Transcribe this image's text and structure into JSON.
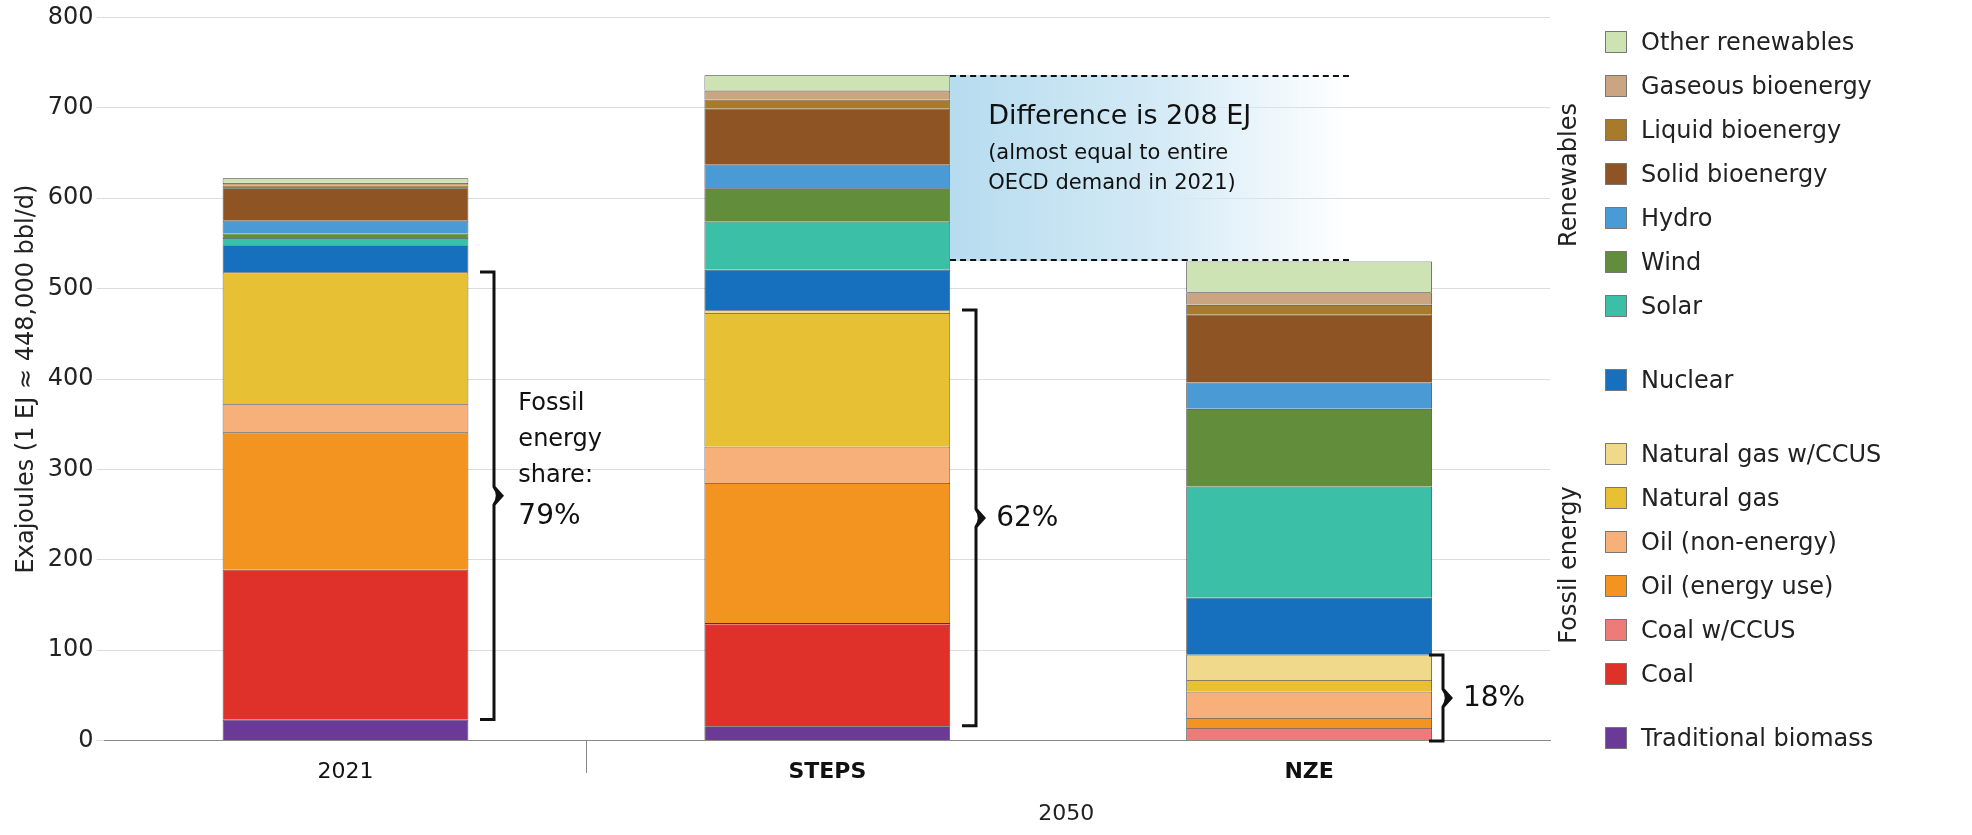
{
  "chart_data": {
    "type": "bar",
    "stacked": true,
    "ylabel": "Exajoules (1 EJ ≈ 448,000 bbl/d)",
    "categories": [
      "2021",
      "STEPS",
      "NZE"
    ],
    "ylim": [
      0,
      800
    ],
    "yticks": [
      0,
      100,
      200,
      300,
      400,
      500,
      600,
      700,
      800
    ],
    "grid": "y",
    "legend": "right",
    "series": [
      {
        "name": "Traditional biomass",
        "color": "#6a3a96",
        "values": [
          23,
          16,
          0
        ]
      },
      {
        "name": "Coal",
        "color": "#e0302a",
        "values": [
          166,
          112,
          0
        ]
      },
      {
        "name": "Coal w/CCUS",
        "color": "#ec7b7a",
        "values": [
          0,
          2,
          14
        ]
      },
      {
        "name": "Oil (energy use)",
        "color": "#f39320",
        "values": [
          152,
          155,
          11
        ]
      },
      {
        "name": "Oil (non-energy)",
        "color": "#f7b07a",
        "values": [
          31,
          40,
          29
        ]
      },
      {
        "name": "Natural gas",
        "color": "#e8c034",
        "values": [
          146,
          148,
          13
        ]
      },
      {
        "name": "Natural gas w/CCUS",
        "color": "#f0d98a",
        "values": [
          0,
          3,
          28
        ]
      },
      {
        "name": "Nuclear",
        "color": "#1670bd",
        "values": [
          30,
          45,
          63
        ]
      },
      {
        "name": "Solar",
        "color": "#3bbfa6",
        "values": [
          8,
          53,
          123
        ]
      },
      {
        "name": "Wind",
        "color": "#628e3c",
        "values": [
          5,
          37,
          86
        ]
      },
      {
        "name": "Hydro",
        "color": "#4a9ad6",
        "values": [
          14,
          26,
          29
        ]
      },
      {
        "name": "Solid bioenergy",
        "color": "#8f5423",
        "values": [
          36,
          62,
          75
        ]
      },
      {
        "name": "Liquid bioenergy",
        "color": "#a87a2c",
        "values": [
          3,
          10,
          11
        ]
      },
      {
        "name": "Gaseous bioenergy",
        "color": "#c9a582",
        "values": [
          3,
          10,
          14
        ]
      },
      {
        "name": "Other renewables",
        "color": "#cde3b4",
        "values": [
          5,
          17,
          34
        ]
      }
    ],
    "annotations": [
      "Fossil energy share:",
      "79%",
      "62%",
      "18%",
      "Difference is 208 EJ",
      "(almost equal to entire OECD demand in 2021)",
      "2050",
      "Renewables",
      "Fossil energy"
    ]
  }
}
